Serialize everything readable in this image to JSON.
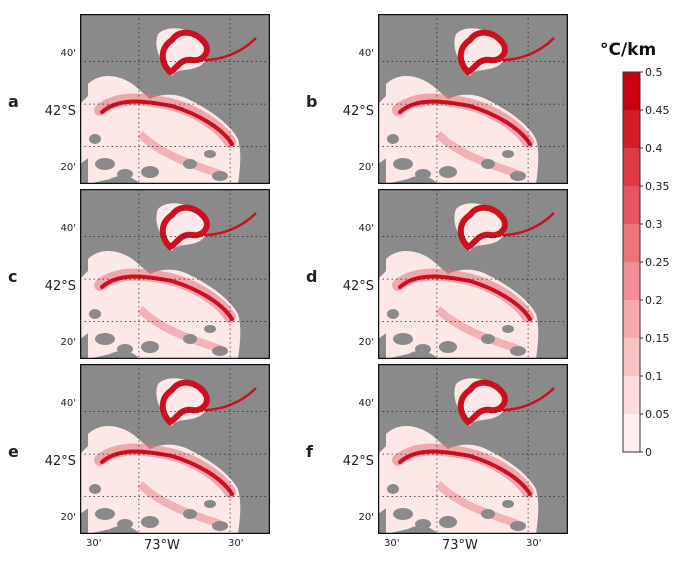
{
  "panels": [
    {
      "letter": "a"
    },
    {
      "letter": "b"
    },
    {
      "letter": "c"
    },
    {
      "letter": "d"
    },
    {
      "letter": "e"
    },
    {
      "letter": "f"
    }
  ],
  "axes": {
    "lat_ticks": [
      "40'",
      "42°S",
      "20'"
    ],
    "lon_ticks": [
      "30'",
      "73°W",
      "30'"
    ]
  },
  "colorbar": {
    "title": "°C/km",
    "ticks": [
      "0.5",
      "0.45",
      "0.4",
      "0.35",
      "0.3",
      "0.25",
      "0.2",
      "0.15",
      "0.1",
      "0.05",
      "0"
    ],
    "colors": [
      "#c80010",
      "#d41c28",
      "#de3a44",
      "#e65660",
      "#ed737b",
      "#f28f95",
      "#f6aaae",
      "#f9c4c6",
      "#fcdcdd",
      "#fef0f0"
    ]
  },
  "map_colors": {
    "land": "#8a8a8a",
    "water_light": "#fde8e8",
    "front_strong": "#cc1020",
    "front_medium": "#e8707a"
  }
}
